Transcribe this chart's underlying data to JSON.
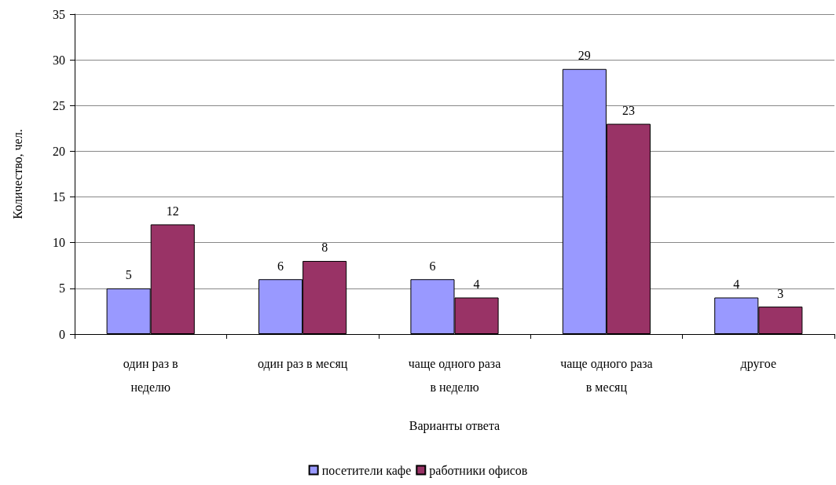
{
  "chart_data": {
    "type": "bar",
    "xlabel": "Варианты ответа",
    "ylabel": "Количество, чел.",
    "categories": [
      "один раз в\nнеделю",
      "один раз в месяц",
      "чаще одного раза\nв неделю",
      "чаще одного раза\nв месяц",
      "другое"
    ],
    "series": [
      {
        "name": "посетители кафе",
        "color": "#9999ff",
        "values": [
          5,
          6,
          6,
          29,
          4
        ]
      },
      {
        "name": "работники офисов",
        "color": "#993366",
        "values": [
          12,
          8,
          4,
          23,
          3
        ]
      }
    ],
    "ylim": [
      0,
      35
    ],
    "yticks": [
      0,
      5,
      10,
      15,
      20,
      25,
      30,
      35
    ],
    "grid": "y",
    "legend": "bottom",
    "data_labels": true
  }
}
